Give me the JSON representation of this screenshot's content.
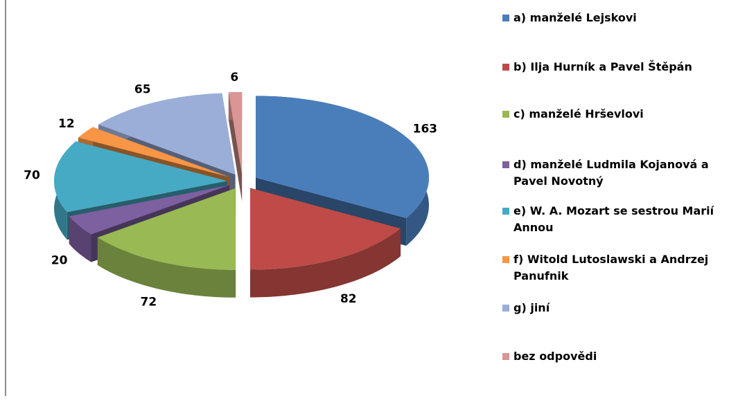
{
  "chart_data": {
    "type": "pie3d",
    "categories": [
      "a) manželé Lejskovi",
      "b) Ilja Hurník a Pavel Štěpán",
      "c) manželé Hrševlovi",
      "d) manželé Ludmila Kojanová a Pavel Novotný",
      "e) W. A. Mozart se sestrou Marií Annou",
      "f) Witold Lutoslawski a Andrzej Panufnik",
      "g) jiní",
      "bez odpovědi"
    ],
    "values": [
      163,
      82,
      72,
      20,
      70,
      12,
      65,
      6
    ],
    "colors": [
      "#4a7ebb",
      "#be4b48",
      "#98b954",
      "#7d60a0",
      "#46aac5",
      "#f79646",
      "#9aaed8",
      "#d99694"
    ],
    "legend": "right"
  }
}
